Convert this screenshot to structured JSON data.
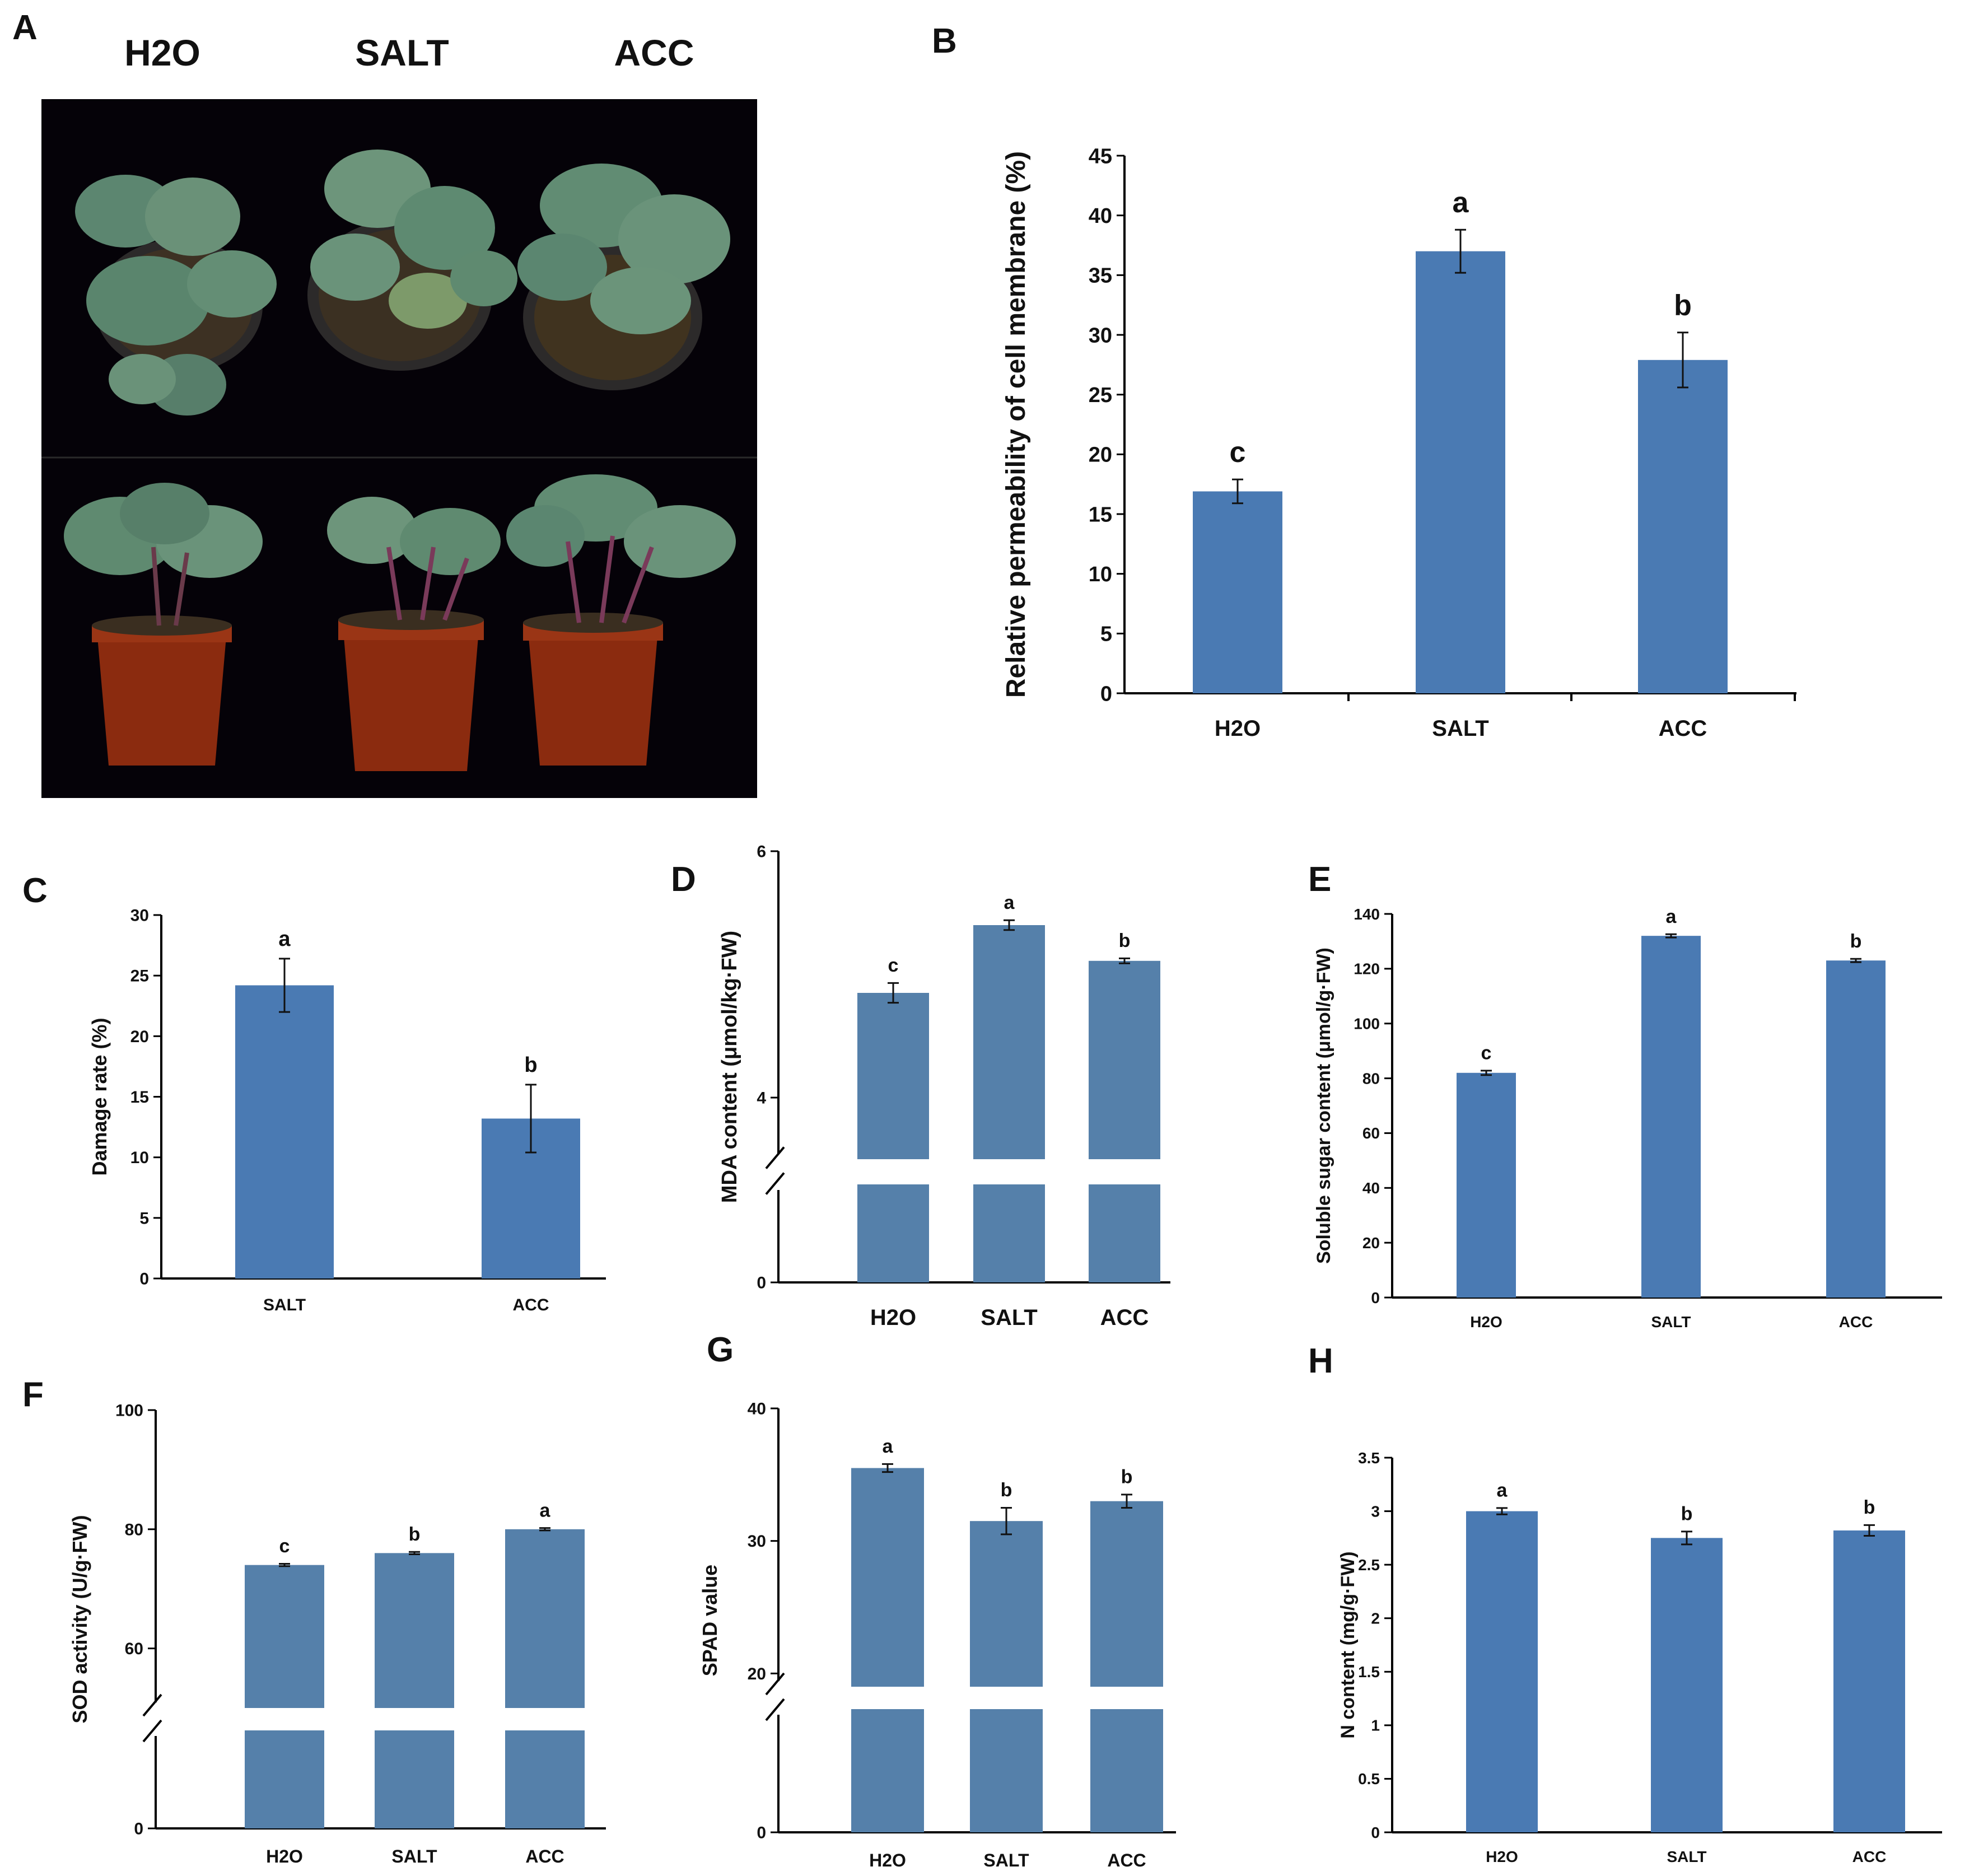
{
  "panel_labels": [
    "A",
    "B",
    "C",
    "D",
    "E",
    "F",
    "G",
    "H"
  ],
  "photo": {
    "column_labels": [
      "H2O",
      "SALT",
      "ACC"
    ]
  },
  "colors": {
    "bar_main": "#4a7ab3",
    "bar_broken": "#5580aa",
    "axis": "#000000",
    "photo_background": "#050208",
    "plant_leaf": "#5f8a70",
    "pot_upper": "#2a2a2a",
    "pot_lower": "#8a2a10"
  },
  "chart_data": [
    {
      "id": "B",
      "type": "bar",
      "categories": [
        "H2O",
        "SALT",
        "ACC"
      ],
      "values": [
        16.9,
        37.0,
        27.9
      ],
      "errors": [
        1.0,
        1.8,
        2.3
      ],
      "significance": [
        "c",
        "a",
        "b"
      ],
      "ylabel": "Relative permeability of cell membrane (%)",
      "ylim": [
        0,
        45
      ],
      "yticks": [
        0,
        5,
        10,
        15,
        20,
        25,
        30,
        35,
        40,
        45
      ],
      "axis_break": false
    },
    {
      "id": "C",
      "type": "bar",
      "categories": [
        "SALT",
        "ACC"
      ],
      "values": [
        24.2,
        13.2
      ],
      "errors": [
        2.2,
        2.8
      ],
      "significance": [
        "a",
        "b"
      ],
      "ylabel": "Damage rate (%)",
      "ylim": [
        0,
        30
      ],
      "yticks": [
        0,
        5,
        10,
        15,
        20,
        25,
        30
      ],
      "axis_break": false
    },
    {
      "id": "D",
      "type": "bar",
      "categories": [
        "H2O",
        "SALT",
        "ACC"
      ],
      "values": [
        4.85,
        5.4,
        5.11
      ],
      "errors": [
        0.08,
        0.04,
        0.02
      ],
      "significance": [
        "c",
        "a",
        "b"
      ],
      "ylabel": "MDA content (μmol/kg·FW)",
      "ylim": [
        0,
        6
      ],
      "yticks": [
        0,
        4,
        6
      ],
      "axis_break": true
    },
    {
      "id": "E",
      "type": "bar",
      "categories": [
        "H2O",
        "SALT",
        "ACC"
      ],
      "values": [
        82,
        132,
        123
      ],
      "errors": [
        0.8,
        0.6,
        0.6
      ],
      "significance": [
        "c",
        "a",
        "b"
      ],
      "ylabel": "Soluble sugar content (μmol/g·FW)",
      "ylim": [
        0,
        140
      ],
      "yticks": [
        0,
        20,
        40,
        60,
        80,
        100,
        120,
        140
      ],
      "axis_break": false
    },
    {
      "id": "F",
      "type": "bar",
      "categories": [
        "H2O",
        "SALT",
        "ACC"
      ],
      "values": [
        74,
        76,
        80
      ],
      "errors": [
        0.2,
        0.2,
        0.2
      ],
      "significance": [
        "c",
        "b",
        "a"
      ],
      "ylabel": "SOD activity (U/g·FW)",
      "ylim": [
        0,
        100
      ],
      "yticks": [
        0,
        60,
        80,
        100
      ],
      "axis_break": true
    },
    {
      "id": "G",
      "type": "bar",
      "categories": [
        "H2O",
        "SALT",
        "ACC"
      ],
      "values": [
        35.5,
        31.5,
        33.0
      ],
      "errors": [
        0.3,
        1.0,
        0.5
      ],
      "significance": [
        "a",
        "b",
        "b"
      ],
      "ylabel": "SPAD value",
      "ylim": [
        0,
        40
      ],
      "yticks": [
        0,
        20,
        30,
        40
      ],
      "axis_break": true
    },
    {
      "id": "H",
      "type": "bar",
      "categories": [
        "H2O",
        "SALT",
        "ACC"
      ],
      "values": [
        3.0,
        2.75,
        2.82
      ],
      "errors": [
        0.03,
        0.06,
        0.05
      ],
      "significance": [
        "a",
        "b",
        "b"
      ],
      "ylabel": "N content (mg/g·FW)",
      "ylim": [
        0,
        3.5
      ],
      "yticks": [
        0,
        0.5,
        1,
        1.5,
        2,
        2.5,
        3,
        3.5
      ],
      "axis_break": false
    }
  ]
}
